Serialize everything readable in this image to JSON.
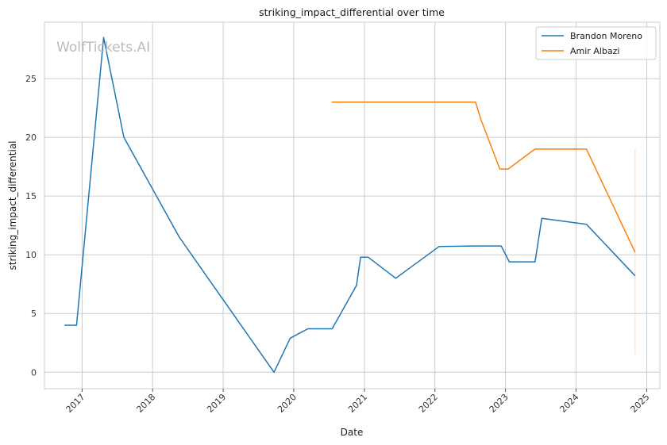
{
  "chart_data": {
    "type": "line",
    "title": "striking_impact_differential over time",
    "xlabel": "Date",
    "ylabel": "striking_impact_differential",
    "watermark": "WolfTickets.AI",
    "x_ticks": [
      "2017",
      "2018",
      "2019",
      "2020",
      "2021",
      "2022",
      "2023",
      "2024",
      "2025"
    ],
    "y_ticks": [
      0,
      5,
      10,
      15,
      20,
      25
    ],
    "xlim": [
      "2016-06-20",
      "2025-03-10"
    ],
    "ylim": [
      -1.4,
      29.8
    ],
    "grid": true,
    "legend_position": "top-right",
    "series": [
      {
        "name": "Brandon Moreno",
        "color": "#1f77b4",
        "points": [
          [
            "2016-10-01",
            4.0
          ],
          [
            "2016-12-03",
            4.0
          ],
          [
            "2017-04-22",
            28.5
          ],
          [
            "2017-08-05",
            20.0
          ],
          [
            "2018-05-19",
            11.5
          ],
          [
            "2019-09-21",
            0.0
          ],
          [
            "2019-12-14",
            2.9
          ],
          [
            "2020-03-14",
            3.7
          ],
          [
            "2020-07-18",
            3.7
          ],
          [
            "2020-11-21",
            7.4
          ],
          [
            "2020-12-12",
            9.8
          ],
          [
            "2021-01-20",
            9.8
          ],
          [
            "2021-06-12",
            8.0
          ],
          [
            "2022-01-22",
            10.7
          ],
          [
            "2022-07-30",
            10.75
          ],
          [
            "2022-12-10",
            10.75
          ],
          [
            "2023-01-21",
            9.4
          ],
          [
            "2023-06-03",
            9.4
          ],
          [
            "2023-07-08",
            13.1
          ],
          [
            "2024-02-24",
            12.6
          ],
          [
            "2024-11-02",
            8.2
          ]
        ]
      },
      {
        "name": "Amir Albazi",
        "color": "#ff7f0e",
        "points": [
          [
            "2020-07-15",
            23.0
          ],
          [
            "2022-07-30",
            23.0
          ],
          [
            "2022-08-27",
            21.5
          ],
          [
            "2022-12-03",
            17.3
          ],
          [
            "2023-01-15",
            17.3
          ],
          [
            "2023-06-03",
            19.0
          ],
          [
            "2024-02-24",
            19.0
          ],
          [
            "2024-11-02",
            10.2
          ]
        ]
      }
    ],
    "band": {
      "x": "2024-11-02",
      "y_range": [
        1.5,
        19.0
      ],
      "color": "#ff7f0e"
    }
  }
}
